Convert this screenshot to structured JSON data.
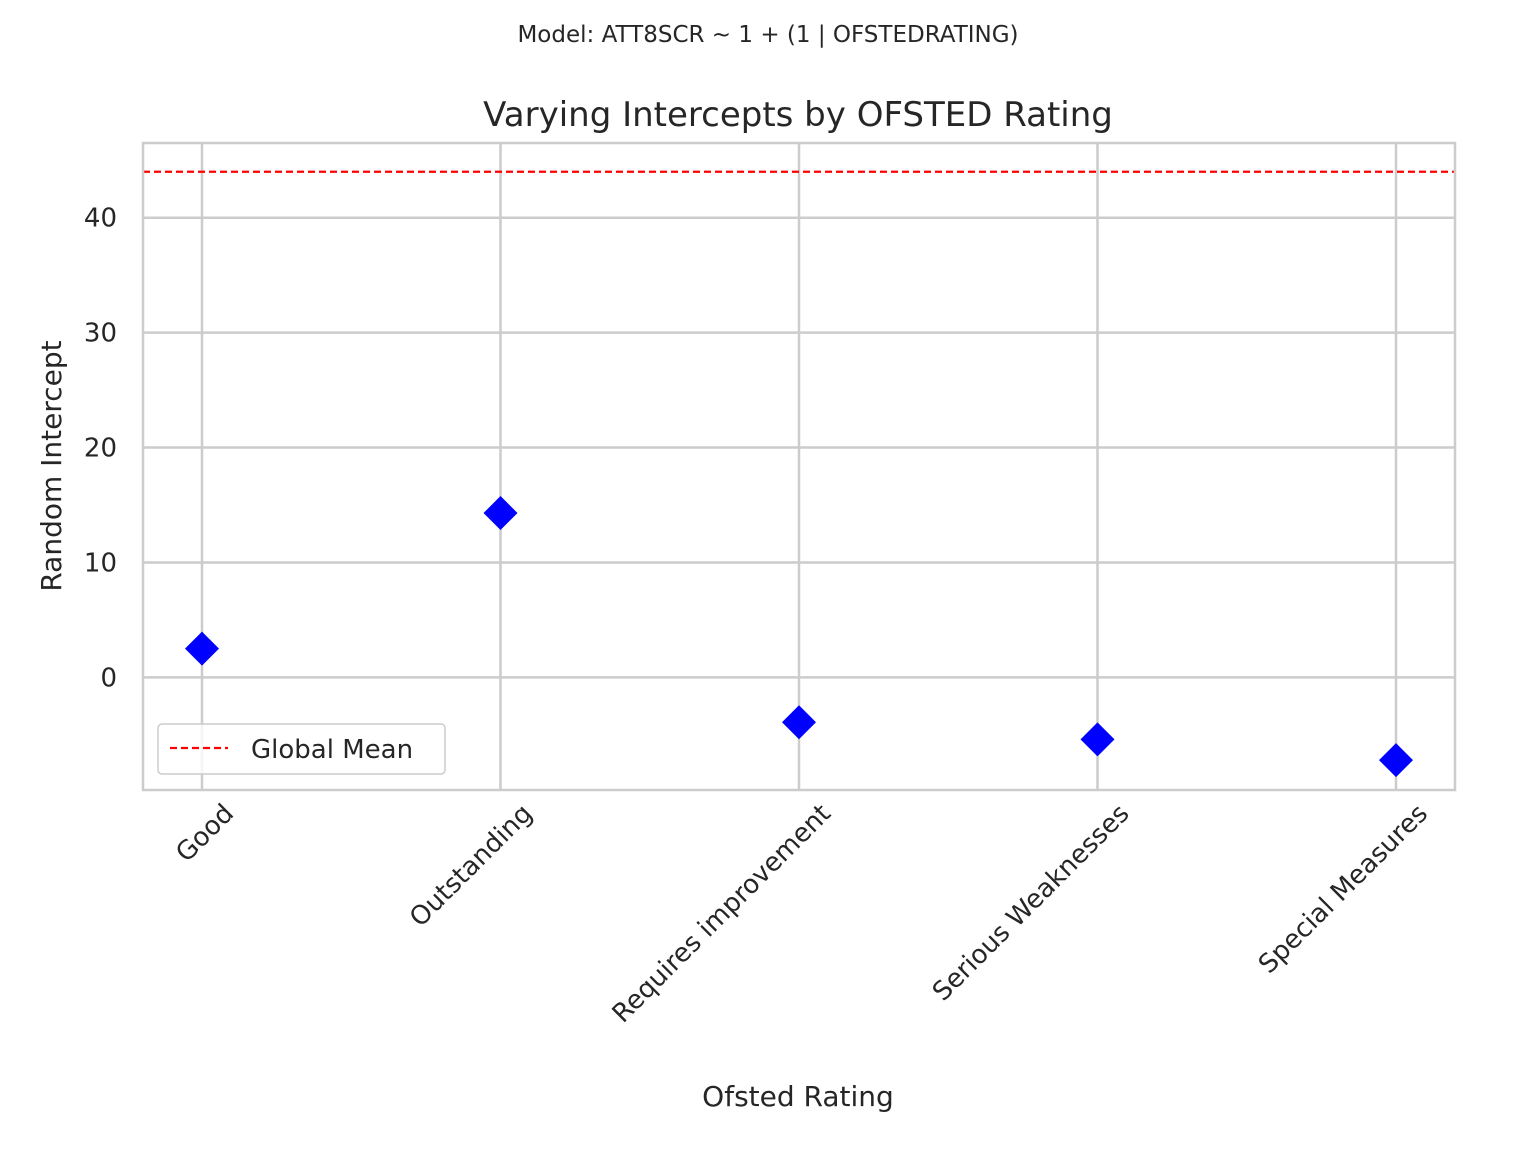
{
  "chart_data": {
    "type": "scatter",
    "suptitle": "Model: ATT8SCR ~ 1 + (1 | OFSTEDRATING)",
    "title": "Varying Intercepts by OFSTED Rating",
    "xlabel": "Ofsted Rating",
    "ylabel": "Random Intercept",
    "categories": [
      "Good",
      "Outstanding",
      "Requires improvement",
      "Serious Weaknesses",
      "Special Measures"
    ],
    "series": [
      {
        "values": [
          2.5,
          14.3,
          -3.9,
          -5.4,
          -7.2
        ],
        "color": "#0000ff",
        "marker": "diamond"
      }
    ],
    "reference_line": {
      "name": "Global Mean",
      "value": 44.0,
      "color": "#ff0000",
      "style": "dashed"
    },
    "ylim": [
      -9.8,
      46.5
    ],
    "yticks": [
      0,
      10,
      20,
      30,
      40
    ],
    "grid": true,
    "legend": "lower-left"
  }
}
